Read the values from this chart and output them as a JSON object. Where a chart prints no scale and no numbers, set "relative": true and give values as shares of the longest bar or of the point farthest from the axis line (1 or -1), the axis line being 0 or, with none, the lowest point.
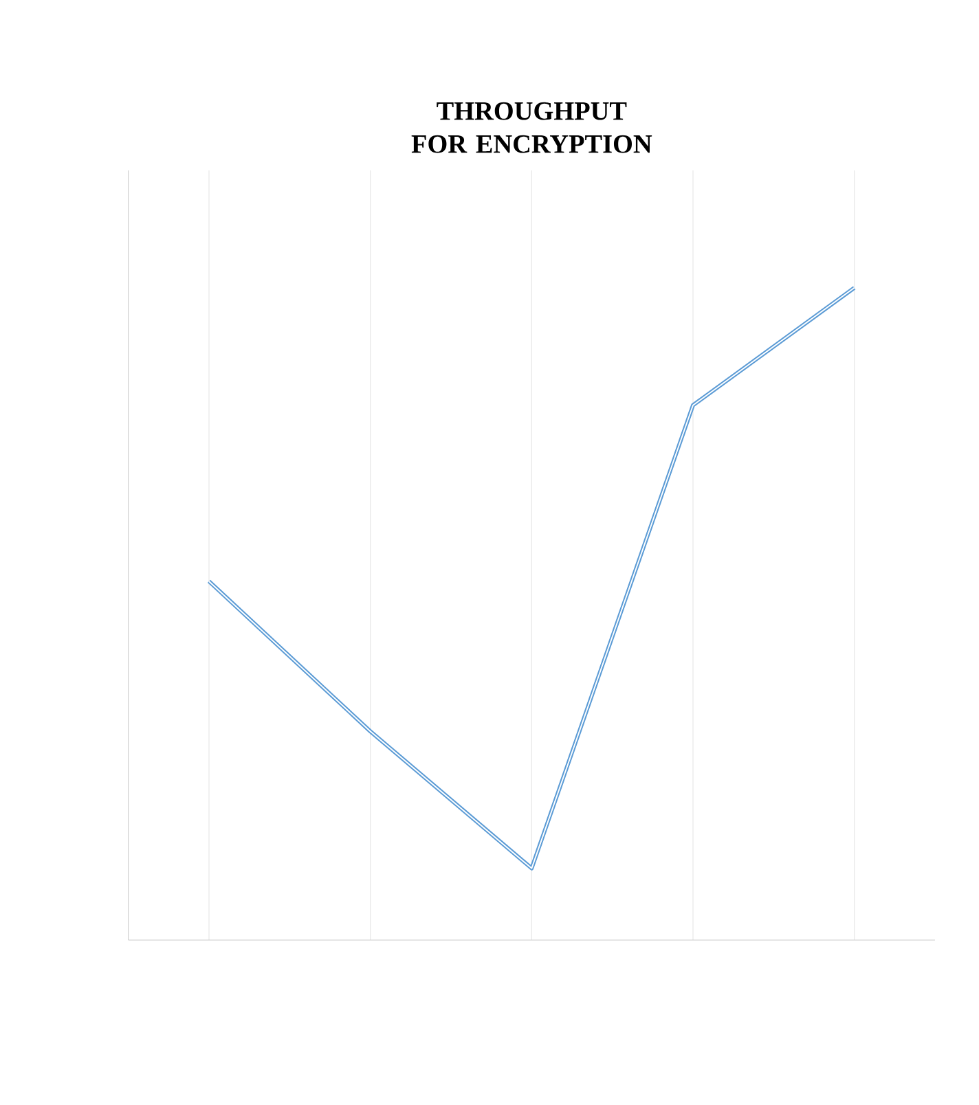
{
  "chart_data": {
    "type": "line",
    "title": "THROUGHPUT FOR ENCRYPTION",
    "categories": [
      null,
      null,
      null,
      null,
      null
    ],
    "relative": true,
    "series": [
      {
        "color": "#5b9bd5",
        "values": [
          0.55,
          0.32,
          0.11,
          0.82,
          1.0
        ]
      }
    ],
    "grid": "x",
    "marker": "none",
    "line_style": "solid"
  }
}
